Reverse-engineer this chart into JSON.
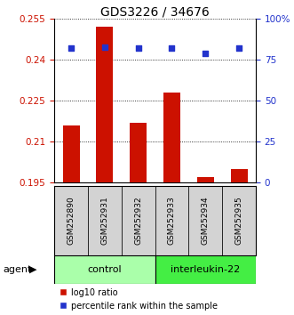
{
  "title": "GDS3226 / 34676",
  "samples": [
    "GSM252890",
    "GSM252931",
    "GSM252932",
    "GSM252933",
    "GSM252934",
    "GSM252935"
  ],
  "log10_ratio": [
    0.216,
    0.252,
    0.217,
    0.228,
    0.197,
    0.2
  ],
  "percentile_rank": [
    82,
    83,
    82,
    82,
    79,
    82
  ],
  "group_configs": [
    {
      "start": 0,
      "end": 2,
      "color": "#aaffaa",
      "label": "control"
    },
    {
      "start": 3,
      "end": 5,
      "color": "#44ee44",
      "label": "interleukin-22"
    }
  ],
  "ylim_left": [
    0.195,
    0.255
  ],
  "ylim_right": [
    0,
    100
  ],
  "yticks_left": [
    0.195,
    0.21,
    0.225,
    0.24,
    0.255
  ],
  "yticks_right": [
    0,
    25,
    50,
    75,
    100
  ],
  "bar_color": "#cc1100",
  "dot_color": "#2233cc",
  "bar_width": 0.5,
  "legend_bar_label": "log10 ratio",
  "legend_dot_label": "percentile rank within the sample",
  "agent_label": "agent",
  "title_fontsize": 10,
  "tick_fontsize": 7.5,
  "sample_fontsize": 6.5,
  "group_fontsize": 8,
  "legend_fontsize": 7
}
